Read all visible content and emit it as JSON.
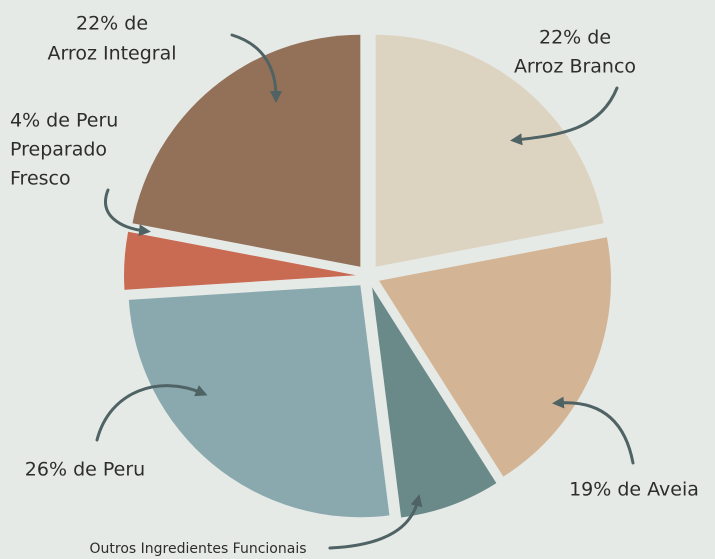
{
  "chart_data": {
    "type": "pie",
    "values": [
      22,
      19,
      7,
      26,
      4,
      22
    ],
    "value_labels": [
      [
        "22% de",
        "Arroz Branco"
      ],
      [
        "19% de Aveia"
      ],
      [
        "Outros Ingredientes Funcionais"
      ],
      [
        "26% de Peru"
      ],
      [
        "4% de Peru",
        "Preparado",
        "Fresco"
      ],
      [
        "22% de",
        "Arroz Integral"
      ]
    ],
    "colors": [
      "#ddd3c1",
      "#d3b595",
      "#6a8a8a",
      "#8aa9ae",
      "#c96a52",
      "#937058"
    ]
  }
}
